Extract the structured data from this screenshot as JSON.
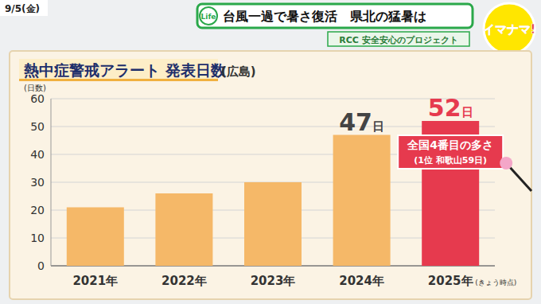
{
  "header": {
    "date": "9/5(金)",
    "badge": "Life",
    "headline": "台風一過で暑さ復活　県北の猛暑は",
    "project": "RCC 安全安心のプロジェクト",
    "logo": "イマナマ!"
  },
  "chart_data": {
    "type": "bar",
    "title": "熱中症警戒アラート 発表日数",
    "subtitle": "(広島)",
    "y_label": "(日数)",
    "categories": [
      "2021年",
      "2022年",
      "2023年",
      "2024年",
      "2025年"
    ],
    "category_note": "(きょう時点)",
    "values": [
      21,
      26,
      30,
      47,
      52
    ],
    "value_labels": [
      null,
      null,
      null,
      "47日",
      "52日"
    ],
    "colors": [
      "#f5b868",
      "#f5b868",
      "#f5b868",
      "#f5b868",
      "#e63a4e"
    ],
    "ylim": [
      0,
      60
    ],
    "yticks": [
      0,
      10,
      20,
      30,
      40,
      50,
      60
    ],
    "grid": true,
    "data_labels": true,
    "annotations": [
      "全国4番目の多さ",
      "(1位 和歌山59日)"
    ]
  }
}
